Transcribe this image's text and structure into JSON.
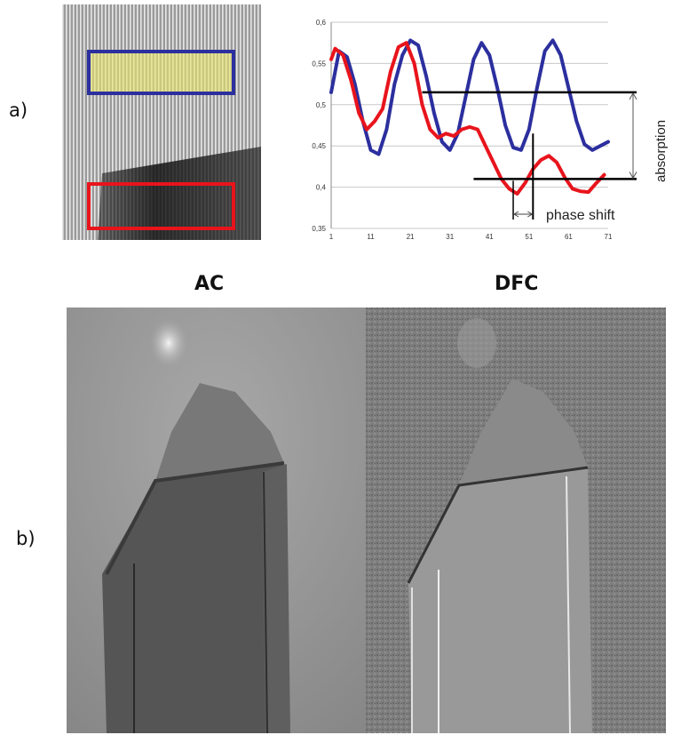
{
  "labels": {
    "a": "a)",
    "b": "b)"
  },
  "panels": {
    "ac_title": "AC",
    "dfc_title": "DFC"
  },
  "colors": {
    "blue": "#2c2f9e",
    "red": "#e8141c",
    "roi_fill": "#e9e86b"
  },
  "chart_data": {
    "type": "line",
    "title": "",
    "xlabel": "",
    "ylabel": "",
    "x_ticks": [
      1,
      11,
      21,
      31,
      41,
      51,
      61,
      71
    ],
    "y_ticks": [
      "0,35",
      "0,4",
      "0,45",
      "0,5",
      "0,55",
      "0,6"
    ],
    "xlim": [
      1,
      71
    ],
    "ylim": [
      0.35,
      0.6
    ],
    "grid": true,
    "series": [
      {
        "color": "#2c2f9e",
        "x": [
          1,
          3,
          5,
          7,
          9,
          11,
          13,
          15,
          17,
          19,
          21,
          23,
          25,
          27,
          29,
          31,
          33,
          35,
          37,
          39,
          41,
          43,
          45,
          47,
          49,
          51,
          53,
          55,
          57,
          59,
          61,
          63,
          65,
          67,
          69,
          71
        ],
        "y": [
          0.515,
          0.565,
          0.558,
          0.525,
          0.48,
          0.445,
          0.44,
          0.47,
          0.525,
          0.56,
          0.578,
          0.572,
          0.535,
          0.49,
          0.455,
          0.445,
          0.465,
          0.51,
          0.555,
          0.575,
          0.56,
          0.52,
          0.475,
          0.448,
          0.445,
          0.47,
          0.52,
          0.565,
          0.578,
          0.56,
          0.52,
          0.48,
          0.452,
          0.445,
          0.45,
          0.455
        ]
      },
      {
        "color": "#e8141c",
        "x": [
          1,
          2,
          4,
          6,
          8,
          10,
          12,
          14,
          16,
          18,
          20,
          22,
          24,
          26,
          28,
          30,
          32,
          34,
          36,
          38,
          40,
          42,
          44,
          46,
          48,
          50,
          52,
          54,
          56,
          58,
          60,
          62,
          64,
          66,
          68,
          70
        ],
        "y": [
          0.555,
          0.568,
          0.56,
          0.53,
          0.49,
          0.47,
          0.48,
          0.495,
          0.54,
          0.57,
          0.575,
          0.55,
          0.5,
          0.47,
          0.46,
          0.465,
          0.462,
          0.47,
          0.473,
          0.47,
          0.45,
          0.43,
          0.41,
          0.398,
          0.392,
          0.405,
          0.422,
          0.433,
          0.438,
          0.43,
          0.412,
          0.398,
          0.395,
          0.394,
          0.405,
          0.415
        ]
      }
    ],
    "annotations": {
      "absorption_label": "absorption",
      "phase_shift_label": "phase shift",
      "upper_level": 0.515,
      "lower_level": 0.41,
      "phase_shift_from": 47,
      "phase_shift_to": 52
    }
  }
}
